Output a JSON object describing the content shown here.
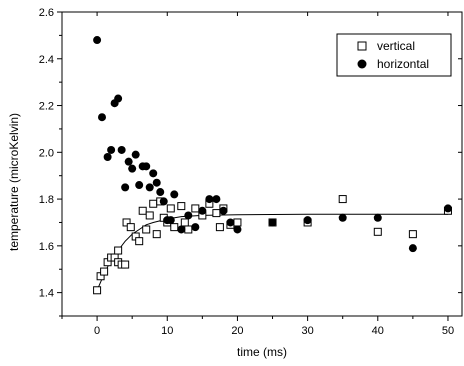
{
  "chart_data": {
    "type": "scatter",
    "xlabel": "time (ms)",
    "ylabel": "temperature (microKelvin)",
    "xlim": [
      -5,
      52
    ],
    "ylim": [
      1.3,
      2.6
    ],
    "x_ticks": [
      0,
      10,
      20,
      30,
      40,
      50
    ],
    "x_tick_labels": [
      "0",
      "10",
      "20",
      "30",
      "40",
      "50"
    ],
    "y_ticks": [
      1.4,
      1.6,
      1.8,
      2.0,
      2.2,
      2.4,
      2.6
    ],
    "y_tick_labels": [
      "1.4",
      "1.6",
      "1.8",
      "2.0",
      "2.2",
      "2.4",
      "2.6"
    ],
    "grid": false,
    "legend_position": "top-right",
    "series": [
      {
        "name": "vertical",
        "marker": "open-square",
        "color": "#000000",
        "points": [
          [
            0,
            1.41
          ],
          [
            0.5,
            1.47
          ],
          [
            1,
            1.49
          ],
          [
            1.5,
            1.53
          ],
          [
            2,
            1.55
          ],
          [
            2.5,
            1.55
          ],
          [
            3,
            1.58
          ],
          [
            3,
            1.53
          ],
          [
            3.5,
            1.52
          ],
          [
            4,
            1.52
          ],
          [
            4.2,
            1.7
          ],
          [
            4.8,
            1.68
          ],
          [
            5.5,
            1.64
          ],
          [
            6,
            1.62
          ],
          [
            6.5,
            1.75
          ],
          [
            7,
            1.67
          ],
          [
            7.5,
            1.73
          ],
          [
            8,
            1.78
          ],
          [
            8.5,
            1.65
          ],
          [
            9,
            1.79
          ],
          [
            9.5,
            1.72
          ],
          [
            10,
            1.7
          ],
          [
            10.5,
            1.76
          ],
          [
            11,
            1.68
          ],
          [
            12,
            1.77
          ],
          [
            12.5,
            1.7
          ],
          [
            13,
            1.67
          ],
          [
            14,
            1.76
          ],
          [
            15,
            1.73
          ],
          [
            16,
            1.78
          ],
          [
            17,
            1.74
          ],
          [
            17.5,
            1.68
          ],
          [
            18,
            1.76
          ],
          [
            19,
            1.69
          ],
          [
            20,
            1.7
          ],
          [
            25,
            1.7
          ],
          [
            30,
            1.7
          ],
          [
            35,
            1.8
          ],
          [
            40,
            1.66
          ],
          [
            45,
            1.65
          ],
          [
            50,
            1.75
          ]
        ]
      },
      {
        "name": "horizontal",
        "marker": "filled-circle",
        "color": "#000000",
        "points": [
          [
            0,
            2.48
          ],
          [
            0.7,
            2.15
          ],
          [
            1.5,
            1.98
          ],
          [
            2,
            2.01
          ],
          [
            2.5,
            2.21
          ],
          [
            3,
            2.23
          ],
          [
            3.5,
            2.01
          ],
          [
            4,
            1.85
          ],
          [
            4.5,
            1.96
          ],
          [
            5,
            1.93
          ],
          [
            5.5,
            1.99
          ],
          [
            6,
            1.86
          ],
          [
            6.5,
            1.94
          ],
          [
            7,
            1.94
          ],
          [
            7.5,
            1.85
          ],
          [
            8,
            1.91
          ],
          [
            8.5,
            1.87
          ],
          [
            9,
            1.83
          ],
          [
            9.5,
            1.79
          ],
          [
            10,
            1.71
          ],
          [
            10.5,
            1.71
          ],
          [
            11,
            1.82
          ],
          [
            12,
            1.67
          ],
          [
            13,
            1.73
          ],
          [
            14,
            1.68
          ],
          [
            15,
            1.75
          ],
          [
            16,
            1.8
          ],
          [
            17,
            1.8
          ],
          [
            18,
            1.75
          ],
          [
            19,
            1.7
          ],
          [
            20,
            1.67
          ],
          [
            25,
            1.7
          ],
          [
            30,
            1.71
          ],
          [
            35,
            1.72
          ],
          [
            40,
            1.72
          ],
          [
            45,
            1.59
          ],
          [
            50,
            1.76
          ]
        ]
      }
    ],
    "fit_curve": {
      "style": "solid-line",
      "color": "#000000",
      "points": [
        [
          0,
          1.41
        ],
        [
          1,
          1.48
        ],
        [
          2,
          1.54
        ],
        [
          3,
          1.58
        ],
        [
          4,
          1.62
        ],
        [
          5,
          1.65
        ],
        [
          6,
          1.67
        ],
        [
          7,
          1.69
        ],
        [
          8,
          1.7
        ],
        [
          10,
          1.715
        ],
        [
          12,
          1.725
        ],
        [
          15,
          1.73
        ],
        [
          20,
          1.733
        ],
        [
          30,
          1.735
        ],
        [
          40,
          1.735
        ],
        [
          50,
          1.735
        ]
      ]
    }
  }
}
